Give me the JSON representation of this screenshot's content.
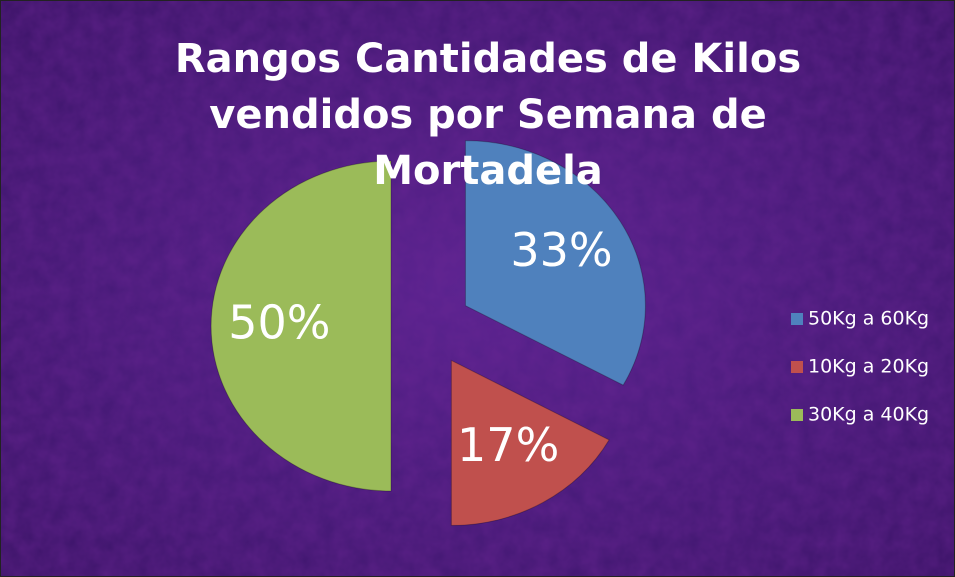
{
  "chart_data": {
    "type": "pie",
    "title": "Rangos Cantidades de Kilos vendidos por Semana de Mortadela",
    "categories": [
      "50Kg a 60Kg",
      "10Kg a 20Kg",
      "30Kg a 40Kg"
    ],
    "values": [
      33,
      17,
      50
    ],
    "value_labels": [
      "33%",
      "17%",
      "50%"
    ],
    "colors": [
      "#4f81bd",
      "#c0504d",
      "#9bbb59"
    ],
    "legend": "right"
  }
}
